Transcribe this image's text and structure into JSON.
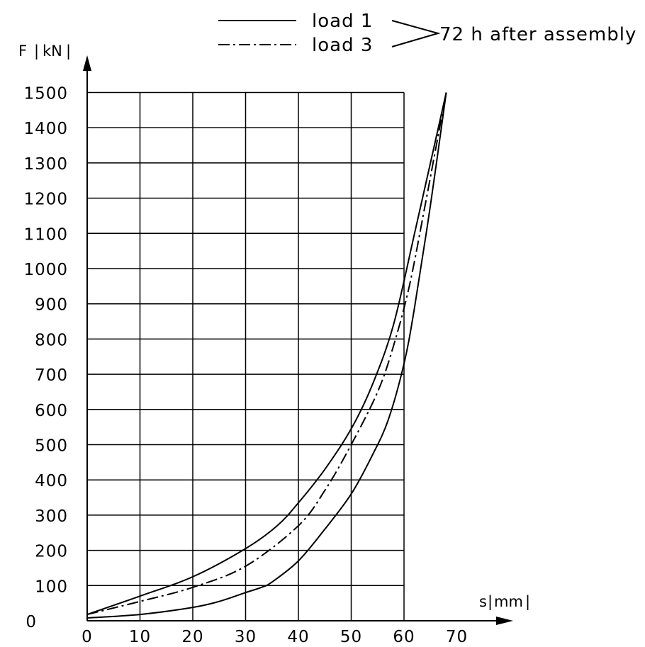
{
  "chart_data": {
    "type": "line",
    "xlabel": "s",
    "xunit": "mm",
    "ylabel": "F",
    "yunit": "kN",
    "xlim": [
      0,
      70
    ],
    "ylim": [
      0,
      1500
    ],
    "xticks": [
      0,
      10,
      20,
      30,
      40,
      50,
      60,
      70
    ],
    "yticks": [
      0,
      100,
      200,
      300,
      400,
      500,
      600,
      700,
      800,
      900,
      1000,
      1100,
      1200,
      1300,
      1400,
      1500
    ],
    "grid": true,
    "legend": {
      "entries": [
        "load 1",
        "load 3"
      ],
      "note": "72 h after assembly",
      "placement": "top"
    },
    "series": [
      {
        "name": "load 1",
        "style": "solid",
        "loop": "loading",
        "x": [
          0,
          10,
          20,
          30,
          36,
          40,
          45,
          50,
          54,
          58,
          62,
          65,
          68
        ],
        "y": [
          18,
          70,
          125,
          205,
          270,
          335,
          430,
          545,
          670,
          840,
          1100,
          1300,
          1500
        ]
      },
      {
        "name": "load 1",
        "style": "solid",
        "loop": "unloading",
        "x": [
          68,
          65,
          62,
          60,
          57,
          54,
          50,
          45,
          40,
          35,
          33,
          30,
          25,
          20,
          10,
          0
        ],
        "y": [
          1500,
          1180,
          890,
          730,
          570,
          470,
          360,
          260,
          170,
          110,
          95,
          80,
          55,
          38,
          18,
          8
        ]
      },
      {
        "name": "load 3",
        "style": "dash-dot",
        "x": [
          0,
          10,
          20,
          30,
          40,
          45,
          50,
          55,
          58,
          61,
          64,
          66,
          68
        ],
        "y": [
          18,
          55,
          95,
          155,
          270,
          370,
          500,
          650,
          780,
          950,
          1180,
          1340,
          1500
        ]
      }
    ]
  }
}
